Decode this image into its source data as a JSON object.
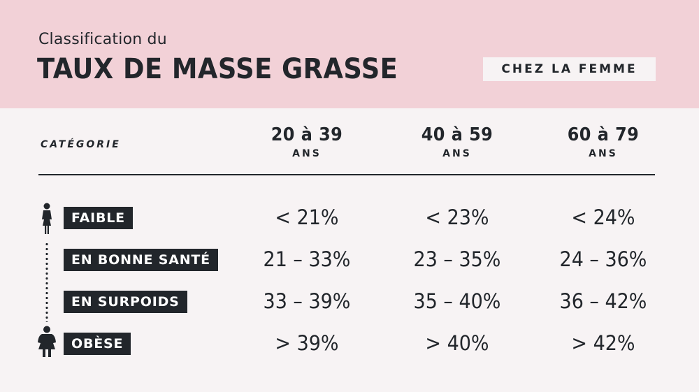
{
  "header": {
    "subtitle": "Classification du",
    "title": "TAUX DE MASSE GRASSE",
    "badge": "CHEZ LA FEMME"
  },
  "table": {
    "category_header": "CATÉGORIE",
    "columns": [
      {
        "range": "20 à 39",
        "unit": "ANS"
      },
      {
        "range": "40 à 59",
        "unit": "ANS"
      },
      {
        "range": "60 à 79",
        "unit": "ANS"
      }
    ],
    "rows": [
      {
        "label": "FAIBLE",
        "values": [
          "< 21%",
          "< 23%",
          "< 24%"
        ]
      },
      {
        "label": "EN BONNE SANTÉ",
        "values": [
          "21 – 33%",
          "23 – 35%",
          "24 – 36%"
        ]
      },
      {
        "label": "EN SURPOIDS",
        "values": [
          "33 – 39%",
          "35 – 40%",
          "36 – 42%"
        ]
      },
      {
        "label": "OBÈSE",
        "values": [
          "> 39%",
          "> 40%",
          "> 42%"
        ]
      }
    ]
  },
  "icons": {
    "top": "slim-woman-icon",
    "bottom": "heavy-woman-icon"
  },
  "colors": {
    "header_bg": "#f2d1d7",
    "panel_bg": "#f7f3f4",
    "dark": "#22262b"
  }
}
